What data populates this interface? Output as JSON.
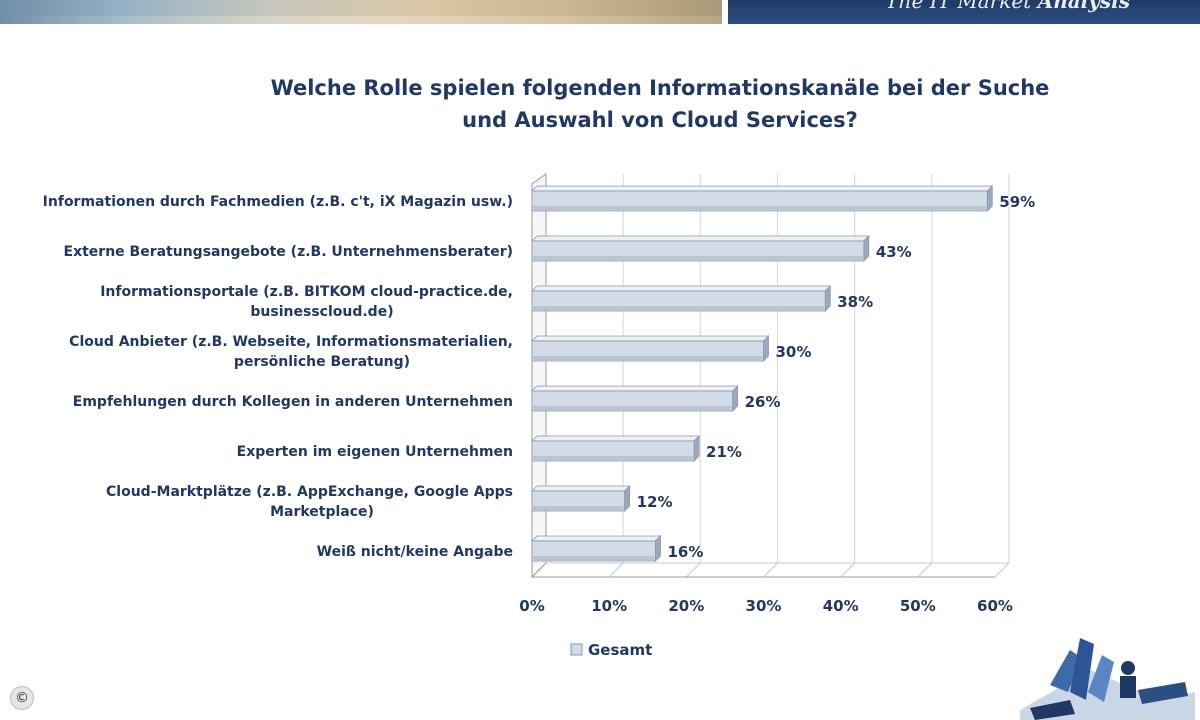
{
  "header": {
    "tagline_prefix": "The IT Market ",
    "tagline_bold": "Analysis"
  },
  "chart_data": {
    "type": "bar",
    "orientation": "horizontal",
    "title_lines": [
      "Welche Rolle spielen folgenden Informationskanäle bei der Suche",
      "und Auswahl von Cloud Services?"
    ],
    "categories": [
      [
        "Informationen durch Fachmedien  (z.B. c't, iX Magazin usw.)"
      ],
      [
        "Externe Beratungsangebote (z.B. Unternehmensberater)"
      ],
      [
        "Informationsportale (z.B. BITKOM cloud-practice.de,",
        "businesscloud.de)"
      ],
      [
        "Cloud Anbieter (z.B. Webseite, Informationsmaterialien,",
        "persönliche Beratung)"
      ],
      [
        "Empfehlungen durch Kollegen in anderen Unternehmen"
      ],
      [
        "Experten im eigenen Unternehmen"
      ],
      [
        "Cloud-Marktplätze (z.B. AppExchange, Google Apps",
        "Marketplace)"
      ],
      [
        "Weiß nicht/keine Angabe"
      ]
    ],
    "series": [
      {
        "name": "Gesamt",
        "values": [
          59,
          43,
          38,
          30,
          26,
          21,
          12,
          16
        ],
        "value_labels": [
          "59%",
          "43%",
          "38%",
          "30%",
          "26%",
          "21%",
          "12%",
          "16%"
        ],
        "color": "#d3dce6"
      }
    ],
    "xlim": [
      0,
      60
    ],
    "xticks": [
      0,
      10,
      20,
      30,
      40,
      50,
      60
    ],
    "xtick_labels": [
      "0%",
      "10%",
      "20%",
      "30%",
      "40%",
      "50%",
      "60%"
    ],
    "grid": true,
    "style": "3d",
    "legend_position": "bottom",
    "legend_label": "Gesamt"
  },
  "colors": {
    "title": "#1f3864",
    "text": "#1f3864",
    "bar_fill": "#d3dce6",
    "bar_edge": "#8797aa",
    "banner": "#2c4f82"
  },
  "icons": {
    "copyright": "copyright-icon",
    "logo": "market-analysis-logo"
  },
  "copyright_symbol": "©"
}
